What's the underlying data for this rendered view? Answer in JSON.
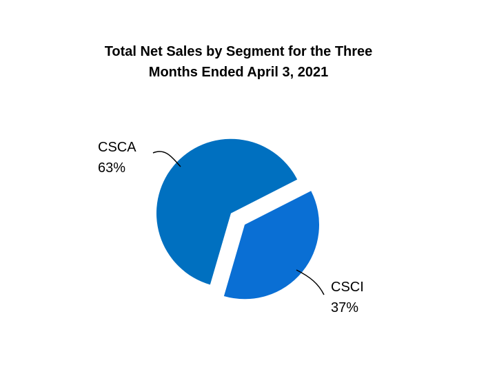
{
  "chart_data": {
    "type": "pie",
    "title": "Total Net Sales by Segment for the Three Months Ended April 3, 2021",
    "categories": [
      "CSCA",
      "CSCI"
    ],
    "values": [
      63,
      37
    ],
    "value_labels": [
      "63%",
      "37%"
    ],
    "colors": [
      "#0070c0",
      "#0a6fd4"
    ]
  }
}
